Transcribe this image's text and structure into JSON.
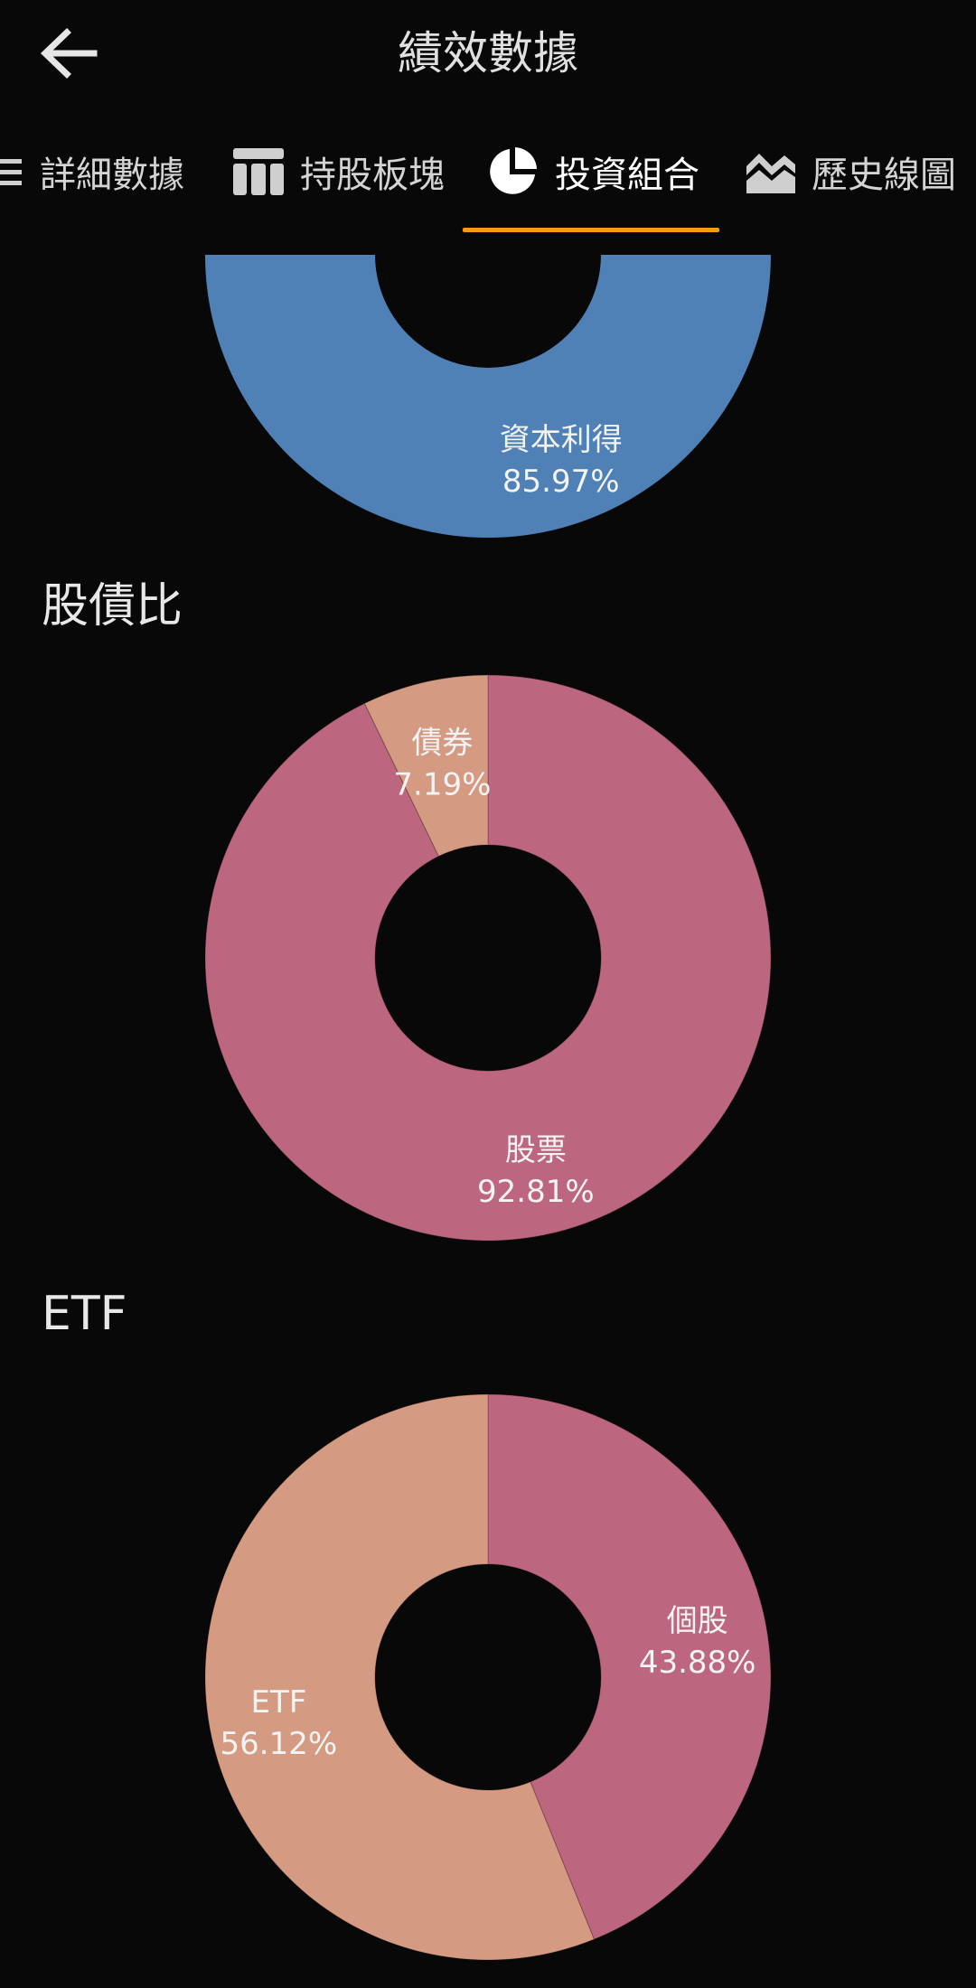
{
  "header": {
    "back_icon": "arrow-left-icon",
    "title": "績效數據"
  },
  "tabs": [
    {
      "label": "詳細數據",
      "icon": "list-icon",
      "active": false
    },
    {
      "label": "持股板塊",
      "icon": "table-icon",
      "active": false
    },
    {
      "label": "投資組合",
      "icon": "pie-chart-icon",
      "active": true
    },
    {
      "label": "歷史線圖",
      "icon": "area-chart-icon",
      "active": false
    }
  ],
  "colors": {
    "background": "#080808",
    "accent": "#f39c12",
    "blue": "#4f81b6",
    "rose": "#bc6680",
    "peach": "#d49a82"
  },
  "sections": {
    "stock_bond": {
      "title": "股債比"
    },
    "etf": {
      "title": "ETF"
    }
  },
  "chart_data": [
    {
      "type": "pie",
      "slices": [
        {
          "label": "資本利得",
          "percent_text": "85.97%",
          "value": 85.97,
          "color": "#4f81b6"
        }
      ]
    },
    {
      "type": "pie",
      "title": "股債比",
      "slices": [
        {
          "label": "股票",
          "percent_text": "92.81%",
          "value": 92.81,
          "color": "#bc6680"
        },
        {
          "label": "債券",
          "percent_text": "7.19%",
          "value": 7.19,
          "color": "#d49a82"
        }
      ]
    },
    {
      "type": "pie",
      "title": "ETF",
      "slices": [
        {
          "label": "個股",
          "percent_text": "43.88%",
          "value": 43.88,
          "color": "#bc6680"
        },
        {
          "label": "ETF",
          "percent_text": "56.12%",
          "value": 56.12,
          "color": "#d49a82"
        }
      ]
    }
  ]
}
